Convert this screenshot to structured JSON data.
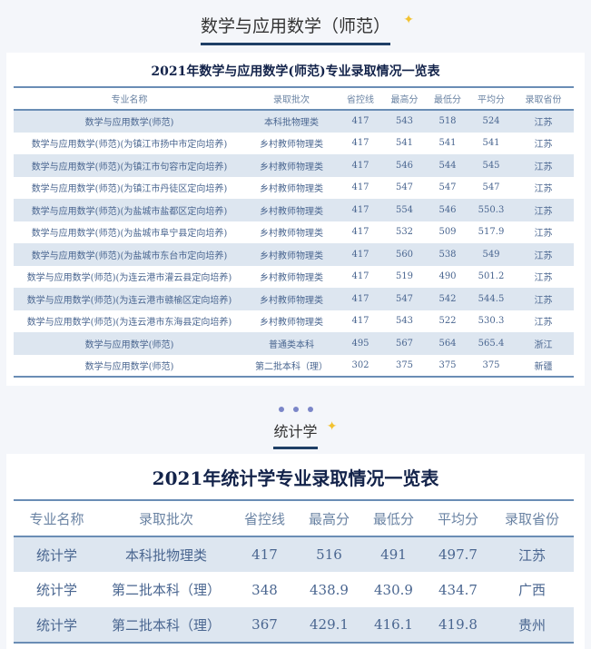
{
  "colors": {
    "accent": "#1f3f66",
    "row_alt": "#dde6f0",
    "text": "#4a6690",
    "star": "#f2c230"
  },
  "section1": {
    "title": "数学与应用数学（师范）",
    "table_title": "2021年数学与应用数学(师范)专业录取情况一览表",
    "headers": [
      "专业名称",
      "录取批次",
      "省控线",
      "最高分",
      "最低分",
      "平均分",
      "录取省份"
    ],
    "rows": [
      [
        "数学与应用数学(师范)",
        "本科批物理类",
        "417",
        "543",
        "518",
        "524",
        "江苏"
      ],
      [
        "数学与应用数学(师范)(为镇江市扬中市定向培养)",
        "乡村教师物理类",
        "417",
        "541",
        "541",
        "541",
        "江苏"
      ],
      [
        "数学与应用数学(师范)(为镇江市句容市定向培养)",
        "乡村教师物理类",
        "417",
        "546",
        "544",
        "545",
        "江苏"
      ],
      [
        "数学与应用数学(师范)(为镇江市丹徒区定向培养)",
        "乡村教师物理类",
        "417",
        "547",
        "547",
        "547",
        "江苏"
      ],
      [
        "数学与应用数学(师范)(为盐城市盐都区定向培养)",
        "乡村教师物理类",
        "417",
        "554",
        "546",
        "550.3",
        "江苏"
      ],
      [
        "数学与应用数学(师范)(为盐城市阜宁县定向培养)",
        "乡村教师物理类",
        "417",
        "532",
        "509",
        "517.9",
        "江苏"
      ],
      [
        "数学与应用数学(师范)(为盐城市东台市定向培养)",
        "乡村教师物理类",
        "417",
        "560",
        "538",
        "549",
        "江苏"
      ],
      [
        "数学与应用数学(师范)(为连云港市灌云县定向培养)",
        "乡村教师物理类",
        "417",
        "519",
        "490",
        "501.2",
        "江苏"
      ],
      [
        "数学与应用数学(师范)(为连云港市赣榆区定向培养)",
        "乡村教师物理类",
        "417",
        "547",
        "542",
        "544.5",
        "江苏"
      ],
      [
        "数学与应用数学(师范)(为连云港市东海县定向培养)",
        "乡村教师物理类",
        "417",
        "543",
        "522",
        "530.3",
        "江苏"
      ],
      [
        "数学与应用数学(师范)",
        "普通类本科",
        "495",
        "567",
        "564",
        "565.4",
        "浙江"
      ],
      [
        "数学与应用数学(师范)",
        "第二批本科（理）",
        "302",
        "375",
        "375",
        "375",
        "新疆"
      ]
    ]
  },
  "section2": {
    "title": "统计学",
    "table_title": "2021年统计学专业录取情况一览表",
    "headers": [
      "专业名称",
      "录取批次",
      "省控线",
      "最高分",
      "最低分",
      "平均分",
      "录取省份"
    ],
    "rows": [
      [
        "统计学",
        "本科批物理类",
        "417",
        "516",
        "491",
        "497.7",
        "江苏"
      ],
      [
        "统计学",
        "第二批本科（理）",
        "348",
        "438.9",
        "430.9",
        "434.7",
        "广西"
      ],
      [
        "统计学",
        "第二批本科（理）",
        "367",
        "429.1",
        "416.1",
        "419.8",
        "贵州"
      ]
    ]
  },
  "icons": {
    "star": "sparkle-star-icon",
    "divider": "three-dots-divider"
  }
}
